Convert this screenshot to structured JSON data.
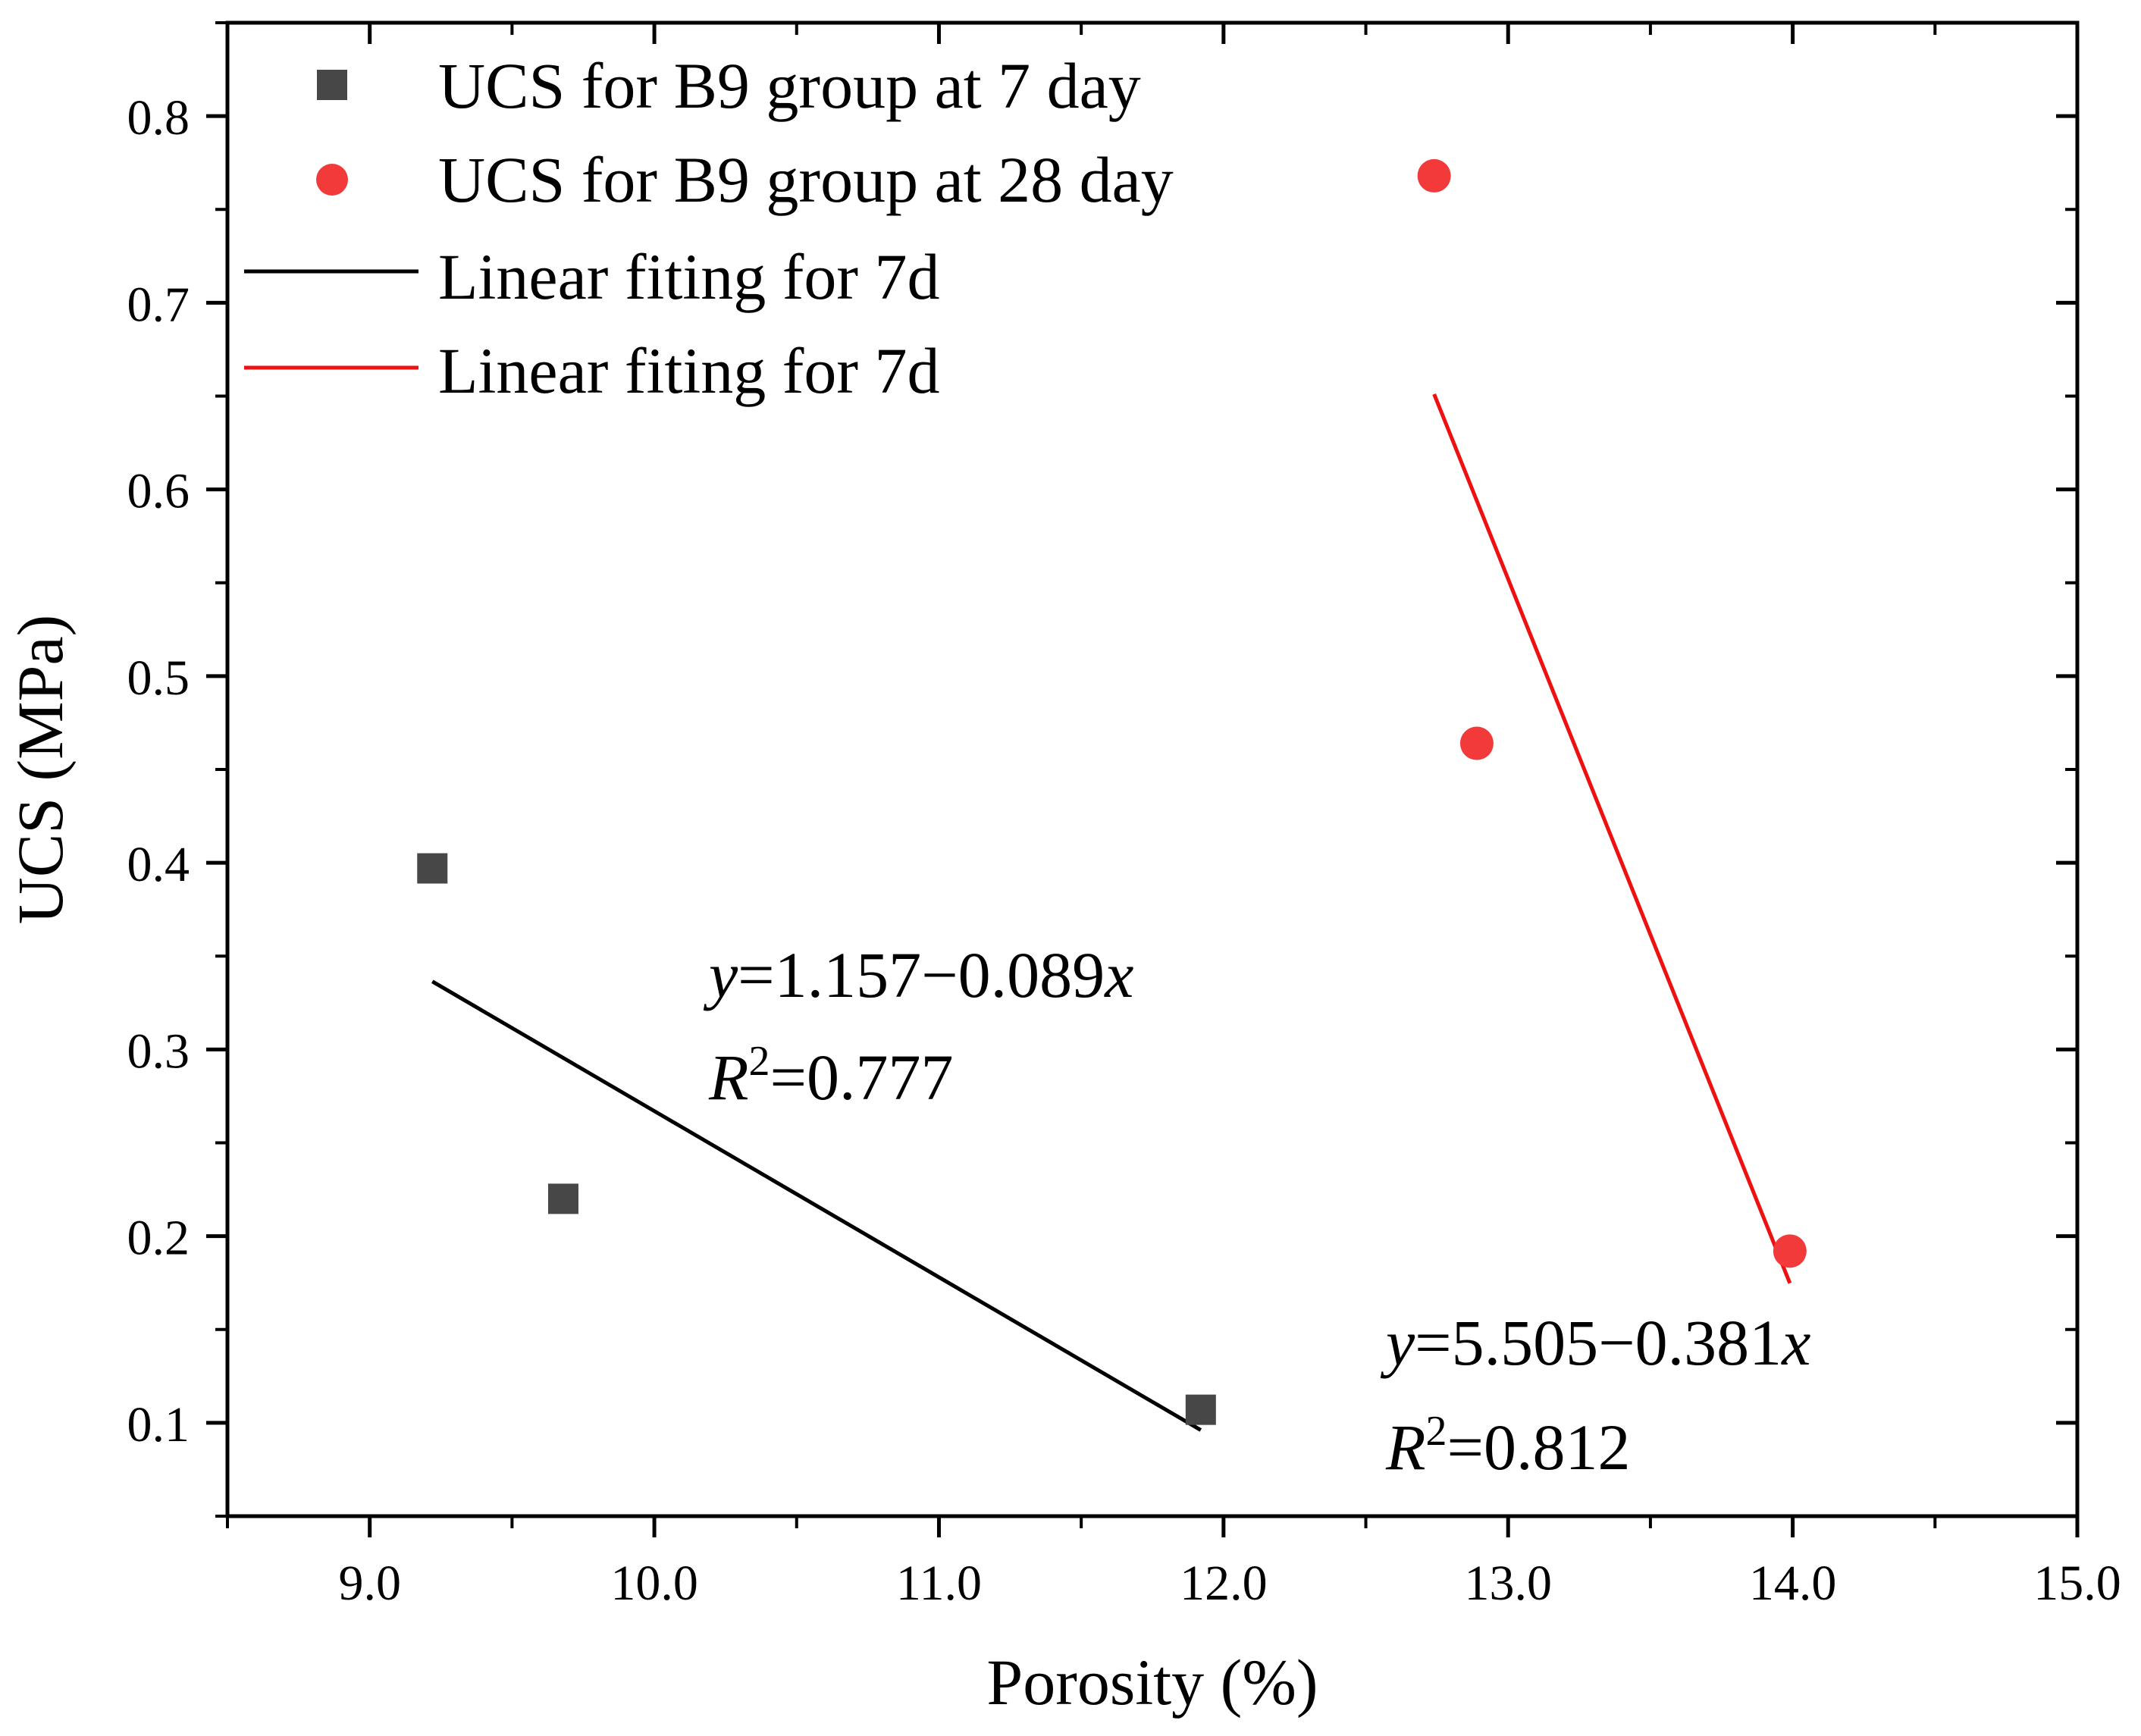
{
  "chart_data": {
    "type": "scatter",
    "title": "",
    "xlabel": "Porosity (%)",
    "ylabel": "UCS (MPa)",
    "xlim": [
      8.5,
      15.0
    ],
    "ylim": [
      0.05,
      0.85
    ],
    "x_ticks": [
      9.0,
      10.0,
      11.0,
      12.0,
      13.0,
      14.0,
      15.0
    ],
    "x_tick_labels": [
      "9.0",
      "10.0",
      "11.0",
      "12.0",
      "13.0",
      "14.0",
      "15.0"
    ],
    "y_ticks": [
      0.1,
      0.2,
      0.3,
      0.4,
      0.5,
      0.6,
      0.7,
      0.8
    ],
    "y_tick_labels": [
      "0.1",
      "0.2",
      "0.3",
      "0.4",
      "0.5",
      "0.6",
      "0.7",
      "0.8"
    ],
    "grid": false,
    "legend_position": "top-left",
    "series": [
      {
        "name": "UCS for B9 group at 7 day",
        "marker": "square",
        "color": "#474747",
        "x": [
          9.22,
          9.68,
          11.92
        ],
        "y": [
          0.397,
          0.22,
          0.107
        ]
      },
      {
        "name": "UCS for B9 group at 28 day",
        "marker": "circle",
        "color": "#f23a3a",
        "x": [
          12.74,
          12.89,
          13.99
        ],
        "y": [
          0.768,
          0.464,
          0.192
        ]
      }
    ],
    "fit_lines": [
      {
        "name": "Linear fiting for 7d",
        "color": "#000000",
        "intercept": 1.157,
        "slope": -0.089,
        "x_range": [
          9.22,
          11.92
        ],
        "equation": {
          "y": "y",
          "eq1": "=1.157−0.089",
          "x": "x",
          "r": "R",
          "sup": "2",
          "eq2": "=0.777"
        }
      },
      {
        "name": "Linear fiting for 7d",
        "color": "#ee1111",
        "intercept": 5.505,
        "slope": -0.381,
        "x_range": [
          12.74,
          13.99
        ],
        "equation": {
          "y": "y",
          "eq1": "=5.505−0.381",
          "x": "x",
          "r": "R",
          "sup": "2",
          "eq2": "=0.812"
        }
      }
    ]
  }
}
